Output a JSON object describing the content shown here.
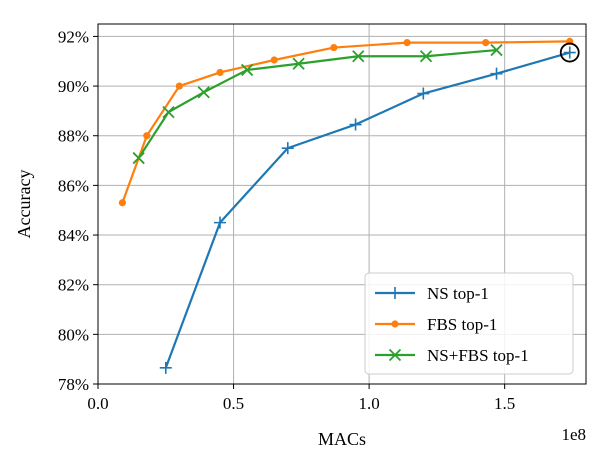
{
  "chart_data": {
    "type": "line",
    "title": "",
    "xlabel": "MACs",
    "ylabel": "Accuracy",
    "x_offset_label": "1e8",
    "xlim": [
      0,
      1.8
    ],
    "ylim": [
      78,
      92.5
    ],
    "x_ticks": [
      0.0,
      0.5,
      1.0,
      1.5
    ],
    "x_tick_labels": [
      "0.0",
      "0.5",
      "1.0",
      "1.5"
    ],
    "y_ticks": [
      78,
      80,
      82,
      84,
      86,
      88,
      90,
      92
    ],
    "y_tick_labels": [
      "78%",
      "80%",
      "82%",
      "84%",
      "86%",
      "88%",
      "90%",
      "92%"
    ],
    "grid": true,
    "legend_position": "lower-right",
    "series": [
      {
        "name": "NS top-1",
        "color": "#1f77b4",
        "marker": "plus",
        "x": [
          0.25,
          0.45,
          0.7,
          0.95,
          1.2,
          1.47,
          1.74
        ],
        "y": [
          78.65,
          84.5,
          87.5,
          88.45,
          89.7,
          90.5,
          91.35
        ]
      },
      {
        "name": "FBS top-1",
        "color": "#ff7f0e",
        "marker": "dot",
        "x": [
          0.09,
          0.18,
          0.3,
          0.45,
          0.65,
          0.87,
          1.14,
          1.43,
          1.74
        ],
        "y": [
          85.3,
          88.0,
          90.0,
          90.55,
          91.05,
          91.55,
          91.75,
          91.75,
          91.8
        ]
      },
      {
        "name": "NS+FBS top-1",
        "color": "#2ca02c",
        "marker": "x",
        "x": [
          0.15,
          0.26,
          0.39,
          0.55,
          0.74,
          0.96,
          1.21,
          1.47
        ],
        "y": [
          87.1,
          88.95,
          89.75,
          90.65,
          90.9,
          91.2,
          91.2,
          91.45
        ]
      }
    ],
    "annotations": [
      {
        "type": "circle",
        "x": 1.74,
        "y": 91.35
      }
    ]
  }
}
